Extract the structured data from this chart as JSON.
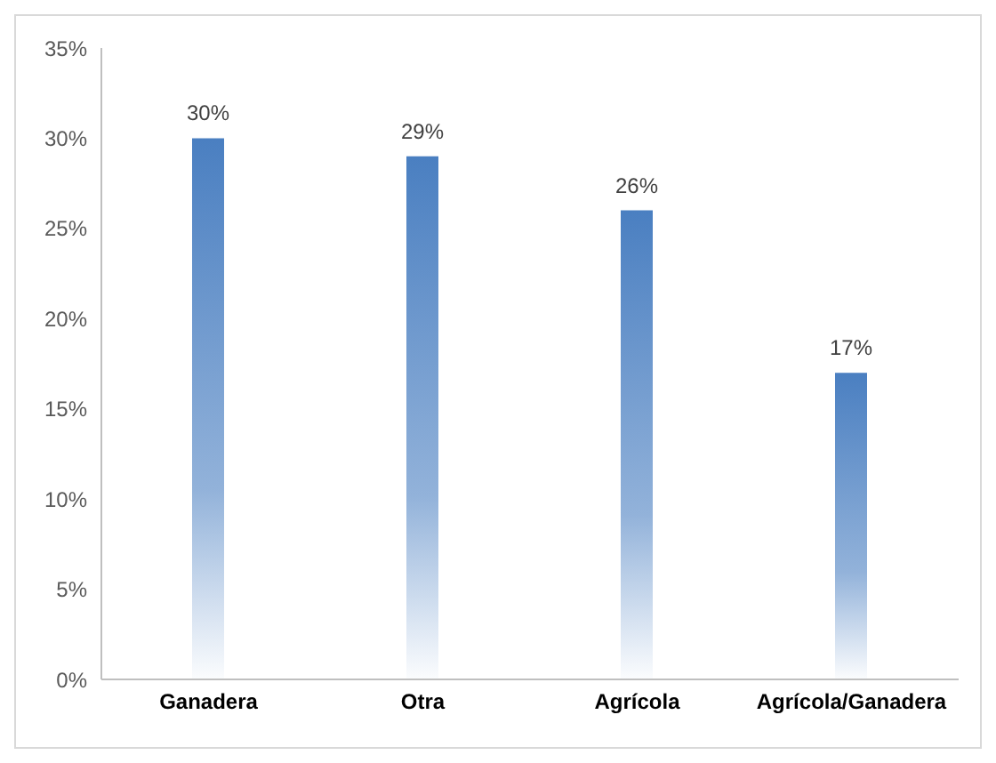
{
  "chart_data": {
    "type": "bar",
    "categories": [
      "Ganadera",
      "Otra",
      "Agrícola",
      "Agrícola/Ganadera"
    ],
    "values": [
      30,
      29,
      26,
      17
    ],
    "value_labels": [
      "30%",
      "29%",
      "26%",
      "17%"
    ],
    "color": "#4a7fc1",
    "ylim": [
      0,
      35
    ],
    "yticks": [
      {
        "value": 0,
        "label": "0%"
      },
      {
        "value": 5,
        "label": "5%"
      },
      {
        "value": 10,
        "label": "10%"
      },
      {
        "value": 15,
        "label": "15%"
      },
      {
        "value": 20,
        "label": "20%"
      },
      {
        "value": 25,
        "label": "25%"
      },
      {
        "value": 30,
        "label": "30%"
      },
      {
        "value": 35,
        "label": "35%"
      }
    ],
    "grid": false,
    "legend": false
  }
}
